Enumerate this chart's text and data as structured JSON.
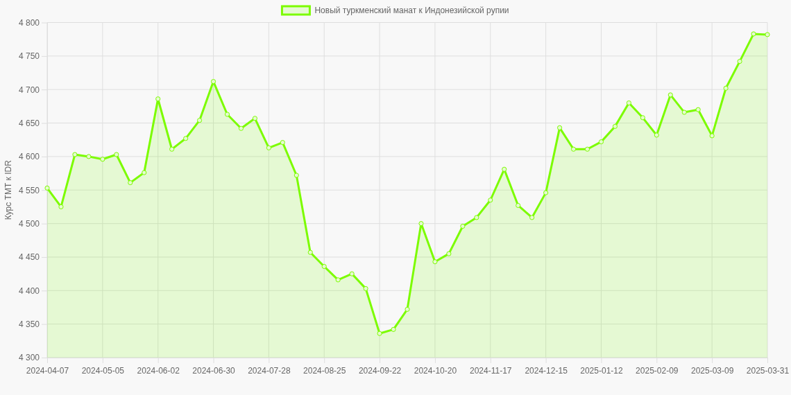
{
  "chart_data": {
    "type": "area",
    "ylabel": "Курс ТМТ к IDR",
    "categories": [
      "2024-04-07",
      null,
      null,
      null,
      "2024-05-05",
      null,
      null,
      null,
      "2024-06-02",
      null,
      null,
      null,
      "2024-06-30",
      null,
      null,
      null,
      "2024-07-28",
      null,
      null,
      null,
      "2024-08-25",
      null,
      null,
      null,
      "2024-09-22",
      null,
      null,
      null,
      "2024-10-20",
      null,
      null,
      null,
      "2024-11-17",
      null,
      null,
      null,
      "2024-12-15",
      null,
      null,
      null,
      "2025-01-12",
      null,
      null,
      null,
      "2025-02-09",
      null,
      null,
      null,
      "2025-03-09",
      null,
      null,
      null,
      "2025-03-31"
    ],
    "series": [
      {
        "name": "Новый туркменский манат к Индонезийской рупии",
        "color": "#7cfc00",
        "values": [
          4553,
          4525,
          4603,
          4600,
          4596,
          4603,
          4561,
          4576,
          4686,
          4611,
          4627,
          4654,
          4712,
          4663,
          4642,
          4657,
          4613,
          4621,
          4572,
          4457,
          4436,
          4416,
          4425,
          4403,
          4336,
          4342,
          4372,
          4500,
          4443,
          4455,
          4496,
          4509,
          4535,
          4581,
          4527,
          4509,
          4546,
          4643,
          4611,
          4611,
          4622,
          4645,
          4680,
          4658,
          4632,
          4692,
          4666,
          4670,
          4631,
          4702,
          4742,
          4783,
          4782
        ]
      }
    ],
    "ylim": [
      4300,
      4800
    ],
    "yticks": [
      {
        "value": 4300,
        "label": "4 300"
      },
      {
        "value": 4350,
        "label": "4 350"
      },
      {
        "value": 4400,
        "label": "4 400"
      },
      {
        "value": 4450,
        "label": "4 450"
      },
      {
        "value": 4500,
        "label": "4 500"
      },
      {
        "value": 4550,
        "label": "4 550"
      },
      {
        "value": 4600,
        "label": "4 600"
      },
      {
        "value": 4650,
        "label": "4 650"
      },
      {
        "value": 4700,
        "label": "4 700"
      },
      {
        "value": 4750,
        "label": "4 750"
      },
      {
        "value": 4800,
        "label": "4 800"
      }
    ],
    "grid": true,
    "legend": "top",
    "marker": "circle"
  }
}
